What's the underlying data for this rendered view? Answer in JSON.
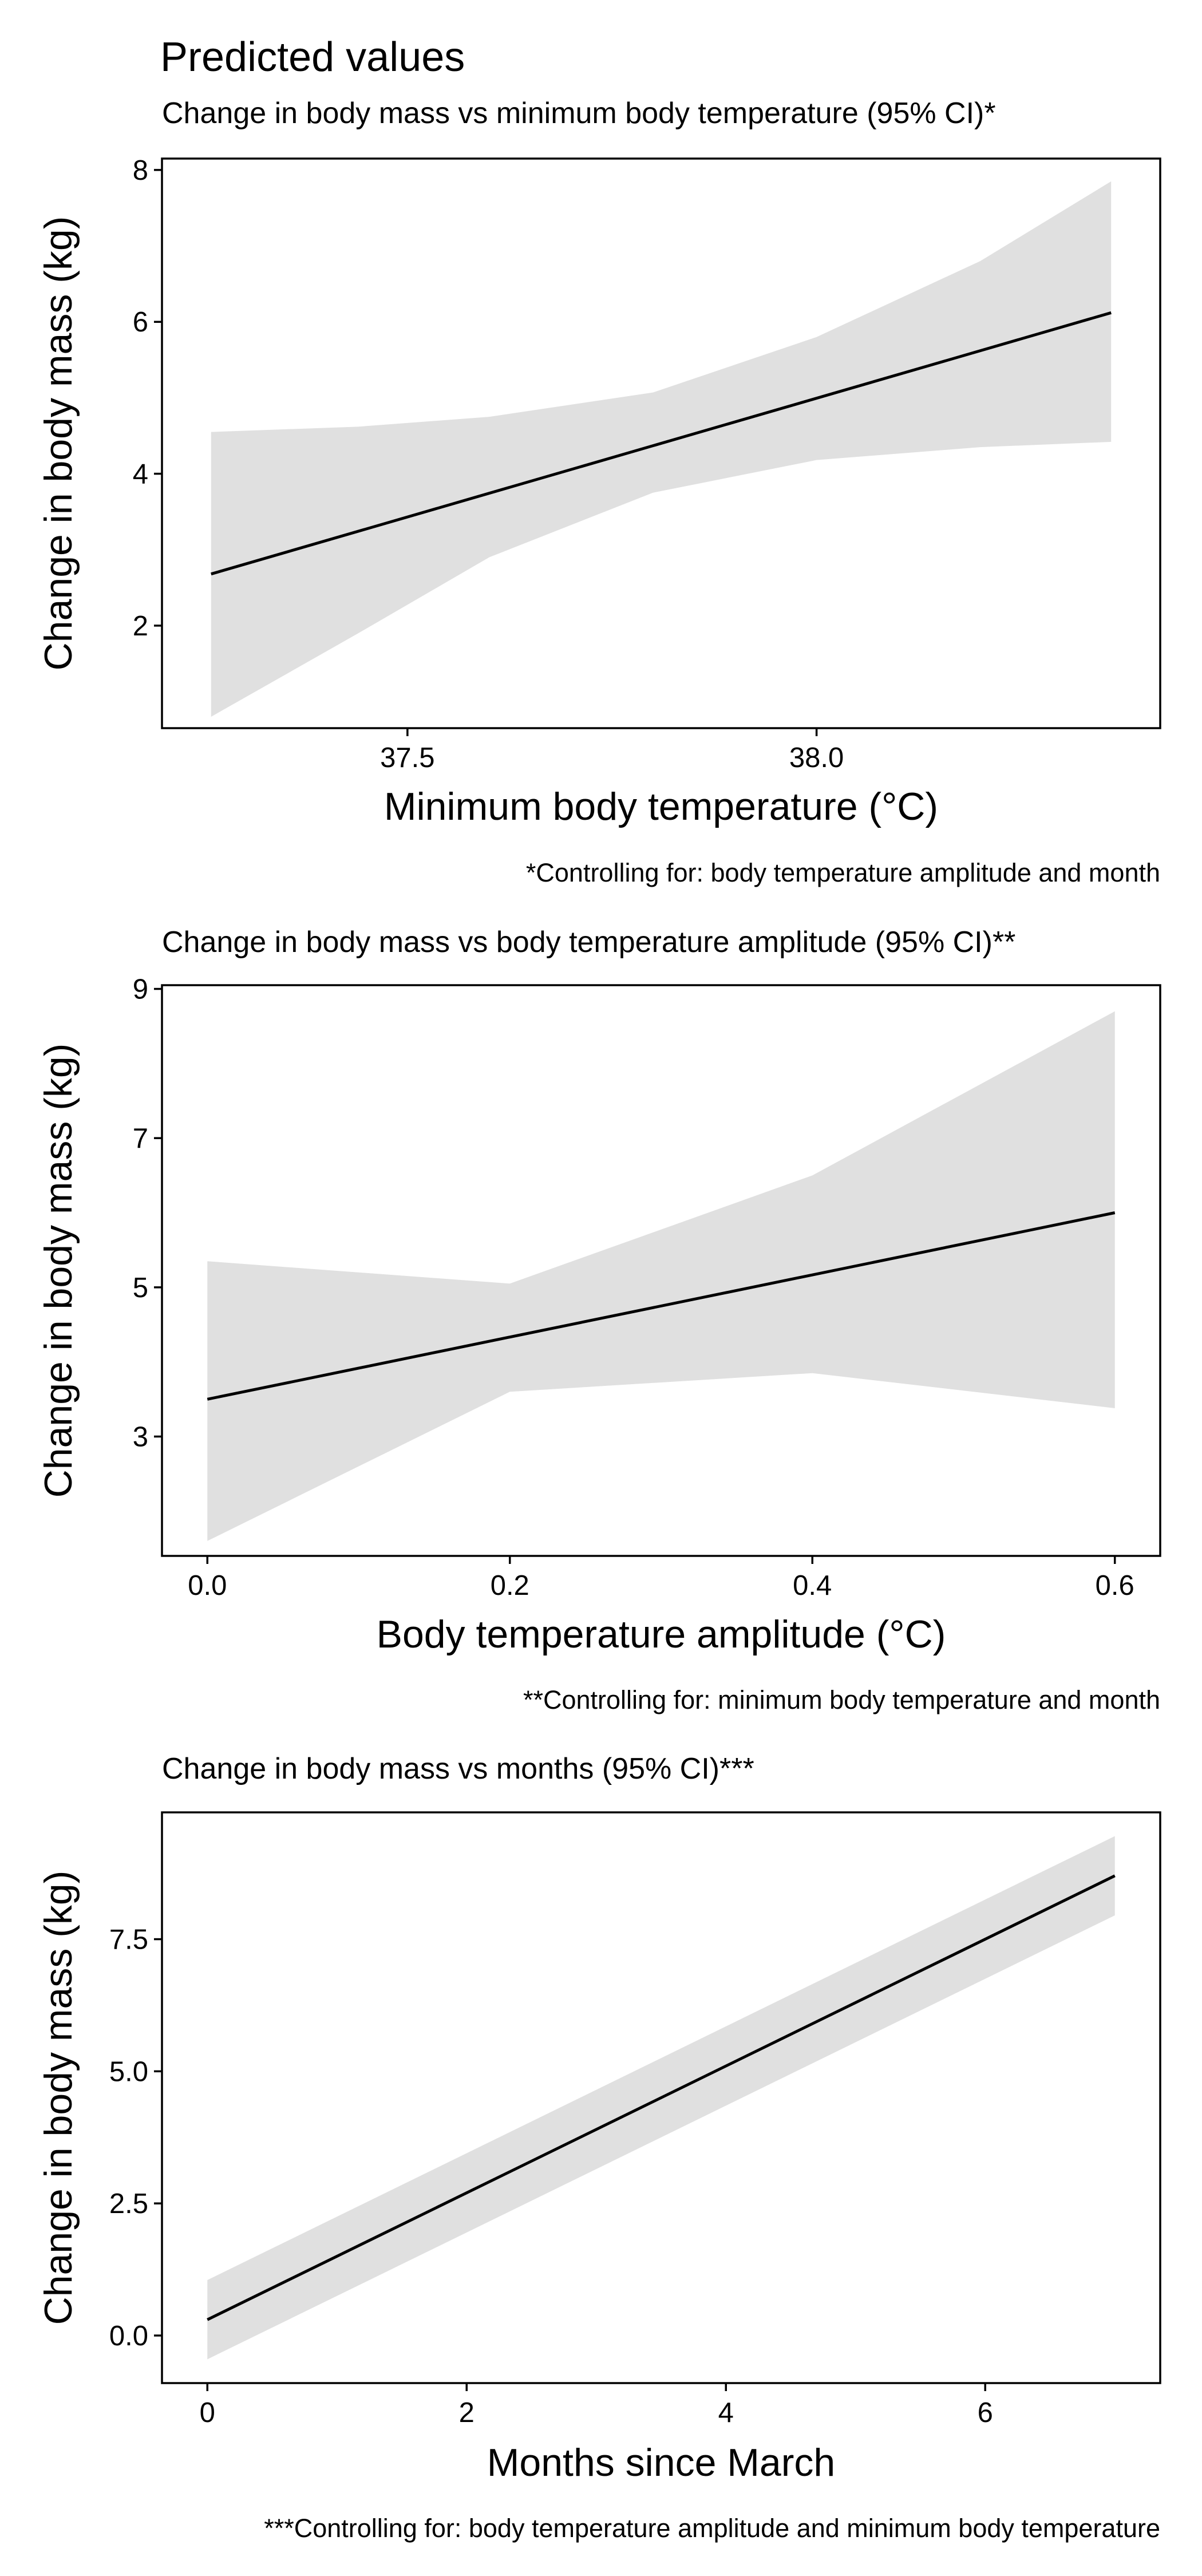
{
  "figure_title": "Predicted values",
  "chart_data": [
    {
      "type": "line",
      "title": "Change in body mass vs minimum body temperature (95% CI)*",
      "xlabel": "Minimum body temperature (°C)",
      "ylabel": "Change in body mass (kg)",
      "xlim": [
        37.2,
        38.42
      ],
      "ylim": [
        0.65,
        8.15
      ],
      "xticks": [
        37.5,
        38.0
      ],
      "xtick_labels": [
        "37.5",
        "38.0"
      ],
      "yticks": [
        2,
        4,
        6,
        8
      ],
      "ytick_labels": [
        "2",
        "4",
        "6",
        "8"
      ],
      "grid": false,
      "series": [
        {
          "type": "line",
          "x": [
            37.26,
            38.36
          ],
          "y": [
            2.68,
            6.12
          ]
        },
        {
          "type": "ribbon",
          "x": [
            37.26,
            37.44,
            37.6,
            37.8,
            38.0,
            38.2,
            38.36
          ],
          "lower": [
            0.8,
            1.9,
            2.9,
            3.75,
            4.18,
            4.35,
            4.42
          ],
          "upper": [
            4.55,
            4.62,
            4.75,
            5.07,
            5.8,
            6.8,
            7.85
          ]
        }
      ],
      "caption": "*Controlling for: body temperature amplitude and month"
    },
    {
      "type": "line",
      "title": "Change in body mass vs body temperature amplitude (95% CI)**",
      "xlabel": "Body temperature amplitude (°C)",
      "ylabel": "Change in body mass (kg)",
      "xlim": [
        -0.03,
        0.63
      ],
      "ylim": [
        1.4,
        9.05
      ],
      "xticks": [
        0.0,
        0.2,
        0.4,
        0.6
      ],
      "xtick_labels": [
        "0.0",
        "0.2",
        "0.4",
        "0.6"
      ],
      "yticks": [
        3,
        5,
        7,
        9
      ],
      "ytick_labels": [
        "3",
        "5",
        "7",
        "9"
      ],
      "grid": false,
      "series": [
        {
          "type": "line",
          "x": [
            0.0,
            0.6
          ],
          "y": [
            3.5,
            6.0
          ]
        },
        {
          "type": "ribbon",
          "x": [
            0.0,
            0.2,
            0.4,
            0.6
          ],
          "lower": [
            1.6,
            3.6,
            3.85,
            3.38
          ],
          "upper": [
            5.35,
            5.05,
            6.5,
            8.7
          ]
        }
      ],
      "caption": "**Controlling for: minimum body temperature and month"
    },
    {
      "type": "line",
      "title": "Change in body mass vs months (95% CI)***",
      "xlabel": "Months since March",
      "ylabel": "Change in body mass (kg)",
      "xlim": [
        -0.35,
        7.35
      ],
      "ylim": [
        -0.9,
        9.9
      ],
      "xticks": [
        0,
        2,
        4,
        6
      ],
      "xtick_labels": [
        "0",
        "2",
        "4",
        "6"
      ],
      "yticks": [
        0.0,
        2.5,
        5.0,
        7.5
      ],
      "ytick_labels": [
        "0.0",
        "2.5",
        "5.0",
        "7.5"
      ],
      "grid": false,
      "series": [
        {
          "type": "line",
          "x": [
            0,
            7
          ],
          "y": [
            0.3,
            8.7
          ]
        },
        {
          "type": "ribbon",
          "x": [
            0,
            7
          ],
          "lower": [
            -0.45,
            7.95
          ],
          "upper": [
            1.05,
            9.45
          ]
        }
      ],
      "caption": "***Controlling for: body temperature amplitude and minimum body temperature"
    }
  ],
  "colors": {
    "band": "#e0e0e0",
    "line": "#000000",
    "axis": "#000000",
    "background": "#ffffff"
  }
}
